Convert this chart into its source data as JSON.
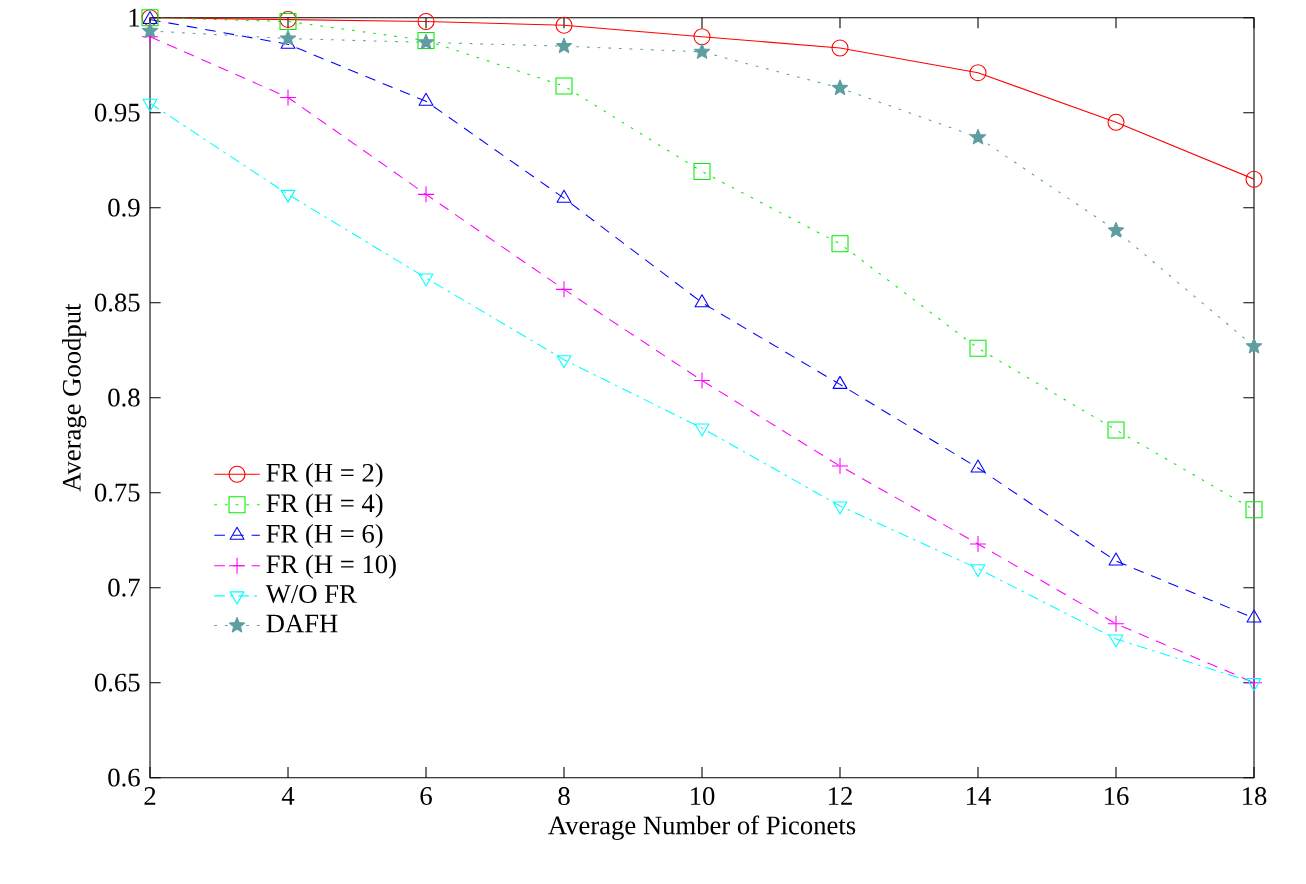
{
  "chart_data": {
    "type": "line",
    "xlabel": "Average Number of Piconets",
    "ylabel": "Average Goodput",
    "x": [
      2,
      4,
      6,
      8,
      10,
      12,
      14,
      16,
      18
    ],
    "xlim": [
      2,
      18
    ],
    "xticks": [
      2,
      4,
      6,
      8,
      10,
      12,
      14,
      16,
      18
    ],
    "ylim": [
      0.6,
      1
    ],
    "yticks": [
      0.6,
      0.65,
      0.7,
      0.75,
      0.8,
      0.85,
      0.9,
      0.95,
      1
    ],
    "grid": false,
    "legend": "left",
    "series": [
      {
        "name": "FR (H = 2)",
        "color": "#ff0000",
        "marker": "circle",
        "line_style": "solid",
        "values": [
          1.0,
          0.999,
          0.998,
          0.996,
          0.99,
          0.984,
          0.971,
          0.945,
          0.915
        ]
      },
      {
        "name": "FR (H = 4)",
        "color": "#00ee00",
        "marker": "square",
        "line_style": "dotted",
        "values": [
          1.0,
          0.998,
          0.988,
          0.964,
          0.919,
          0.881,
          0.826,
          0.783,
          0.741
        ]
      },
      {
        "name": "FR (H = 6)",
        "color": "#0000ff",
        "marker": "triangle",
        "line_style": "dashed",
        "values": [
          0.999,
          0.986,
          0.956,
          0.905,
          0.85,
          0.807,
          0.763,
          0.714,
          0.684
        ]
      },
      {
        "name": "FR (H = 10)",
        "color": "#ff00ff",
        "marker": "cross",
        "line_style": "dashed",
        "values": [
          0.99,
          0.958,
          0.907,
          0.857,
          0.809,
          0.764,
          0.723,
          0.681,
          0.65
        ]
      },
      {
        "name": "W/O FR",
        "color": "#00ffff",
        "marker": "triangle down",
        "line_style": "dashdot",
        "values": [
          0.955,
          0.907,
          0.863,
          0.82,
          0.784,
          0.743,
          0.71,
          0.673,
          0.65
        ]
      },
      {
        "name": "DAFH",
        "color": "#5f9ea0",
        "marker": "star",
        "line_style": "dotted",
        "values": [
          0.993,
          0.989,
          0.987,
          0.985,
          0.982,
          0.963,
          0.937,
          0.888,
          0.827
        ]
      }
    ]
  }
}
